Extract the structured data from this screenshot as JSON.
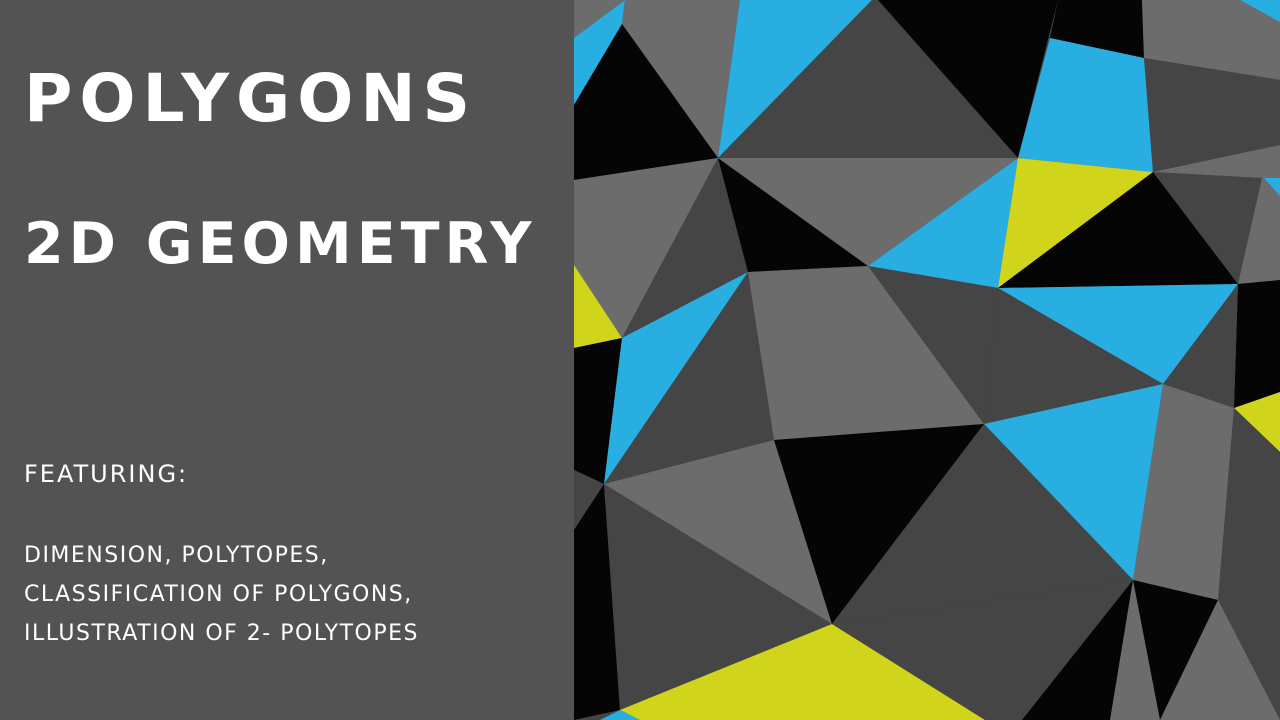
{
  "slide": {
    "title": "POLYGONS",
    "subtitle": "2D GEOMETRY",
    "featuring_label": "FEATURING:",
    "features": [
      "DIMENSION, POLYTOPES,",
      "CLASSIFICATION OF POLYGONS,",
      "ILLUSTRATION OF 2- POLYTOPES"
    ]
  },
  "colors": {
    "panel_background": "#535353",
    "text": "#ffffff",
    "pattern_black": "#050505",
    "pattern_dark_gray": "#454545",
    "pattern_gray": "#6c6c6c",
    "pattern_blue": "#28aee0",
    "pattern_lime": "#d0d41a"
  }
}
